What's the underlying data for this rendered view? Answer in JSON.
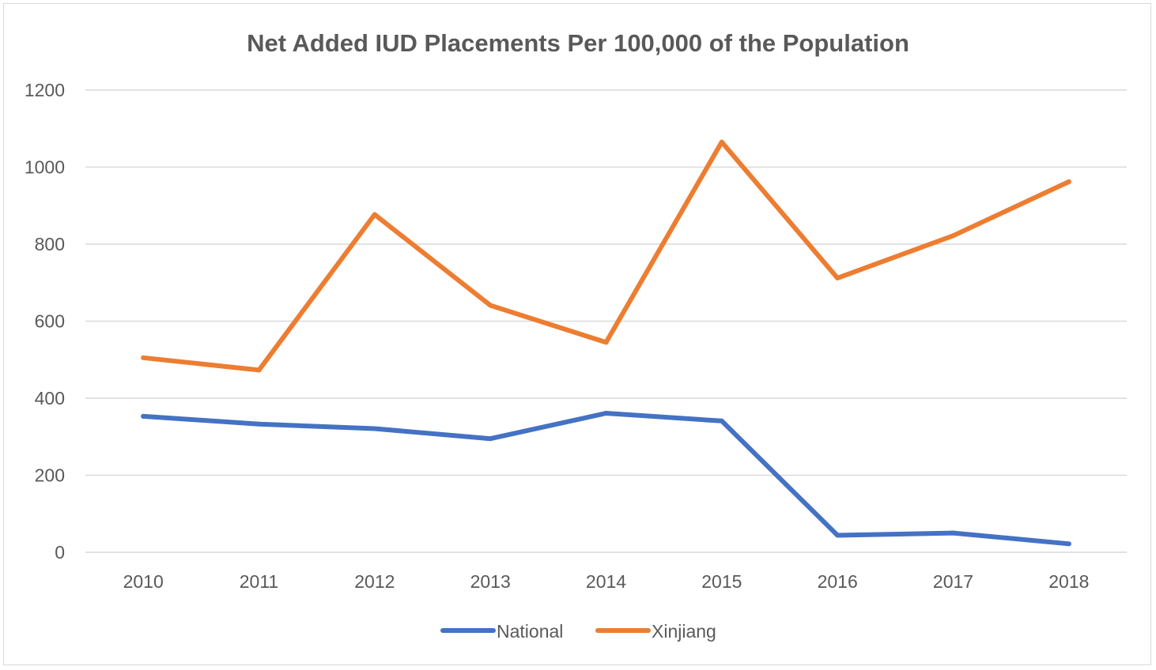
{
  "chart_data": {
    "type": "line",
    "title": "Net Added IUD Placements Per 100,000 of the Population",
    "xlabel": "",
    "ylabel": "",
    "categories": [
      "2010",
      "2011",
      "2012",
      "2013",
      "2014",
      "2015",
      "2016",
      "2017",
      "2018"
    ],
    "ylim": [
      0,
      1200
    ],
    "yticks": [
      "0",
      "200",
      "400",
      "600",
      "800",
      "1000",
      "1200"
    ],
    "grid": true,
    "legend_position": "bottom",
    "series": [
      {
        "name": "National",
        "color": "#4472C4",
        "values": [
          353,
          333,
          321,
          295,
          361,
          341,
          44,
          50,
          22
        ]
      },
      {
        "name": "Xinjiang",
        "color": "#ED7D31",
        "values": [
          505,
          473,
          877,
          641,
          545,
          1065,
          712,
          822,
          962
        ]
      }
    ]
  }
}
